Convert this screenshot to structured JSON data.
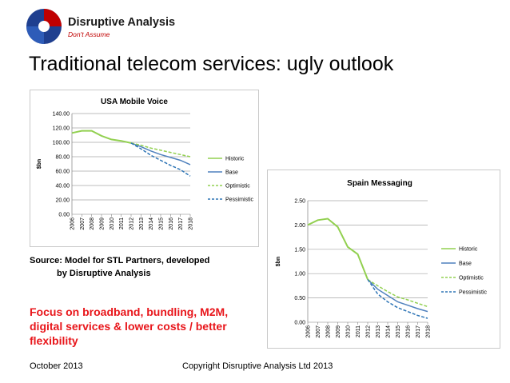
{
  "logo": {
    "brand": "Disruptive Analysis",
    "tagline": "Don't Assume"
  },
  "slide_title": "Traditional telecom services: ugly outlook",
  "source_line1": "Source: Model for STL Partners, developed",
  "source_line2": "by Disruptive Analysis",
  "focus_text": "Focus on broadband, bundling, M2M, digital services & lower costs / better flexibility",
  "footer": {
    "date": "October 2013",
    "copyright": "Copyright Disruptive Analysis Ltd 2013"
  },
  "colors": {
    "historic": "#92d050",
    "base": "#4f81bd",
    "optimistic": "#92d050",
    "pessimistic": "#2e75b6",
    "accent_red": "#e8151a"
  },
  "chart_data": [
    {
      "id": "usa",
      "type": "line",
      "title": "USA Mobile Voice",
      "ylabel": "$bn",
      "xlabel": "",
      "ylim": [
        0,
        140
      ],
      "yticks": [
        0,
        20,
        40,
        60,
        80,
        100,
        120,
        140
      ],
      "ytick_labels": [
        "0.00",
        "20.00",
        "40.00",
        "60.00",
        "80.00",
        "100.00",
        "120.00",
        "140.00"
      ],
      "categories": [
        "2006",
        "2007",
        "2008",
        "2009",
        "2010",
        "2011",
        "2012",
        "2013",
        "2014",
        "2015",
        "2016",
        "2017",
        "2018"
      ],
      "legend_position": "right",
      "series": [
        {
          "name": "Historic",
          "style": "solid",
          "values": [
            113,
            116,
            116,
            109,
            104,
            102,
            99,
            null,
            null,
            null,
            null,
            null,
            null
          ]
        },
        {
          "name": "Base",
          "style": "solid",
          "values": [
            null,
            null,
            null,
            null,
            null,
            null,
            99,
            94,
            88,
            83,
            79,
            75,
            69
          ]
        },
        {
          "name": "Optimistic",
          "style": "dashed",
          "values": [
            null,
            null,
            null,
            null,
            null,
            null,
            99,
            96,
            92,
            89,
            86,
            83,
            80
          ]
        },
        {
          "name": "Pessimistic",
          "style": "dashed",
          "values": [
            null,
            null,
            null,
            null,
            null,
            null,
            99,
            91,
            82,
            75,
            68,
            62,
            53
          ]
        }
      ]
    },
    {
      "id": "spain",
      "type": "line",
      "title": "Spain Messaging",
      "ylabel": "$bn",
      "xlabel": "",
      "ylim": [
        0,
        2.5
      ],
      "yticks": [
        0,
        0.5,
        1,
        1.5,
        2,
        2.5
      ],
      "ytick_labels": [
        "0.00",
        "0.50",
        "1.00",
        "1.50",
        "2.00",
        "2.50"
      ],
      "categories": [
        "2006",
        "2007",
        "2008",
        "2009",
        "2010",
        "2011",
        "2012",
        "2013",
        "2014",
        "2015",
        "2016",
        "2017",
        "2018"
      ],
      "legend_position": "right",
      "series": [
        {
          "name": "Historic",
          "style": "solid",
          "values": [
            2.0,
            2.1,
            2.13,
            1.96,
            1.55,
            1.4,
            0.88,
            null,
            null,
            null,
            null,
            null,
            null
          ]
        },
        {
          "name": "Base",
          "style": "solid",
          "values": [
            null,
            null,
            null,
            null,
            null,
            null,
            0.88,
            0.68,
            0.55,
            0.42,
            0.35,
            0.28,
            0.22
          ]
        },
        {
          "name": "Optimistic",
          "style": "dashed",
          "values": [
            null,
            null,
            null,
            null,
            null,
            null,
            0.88,
            0.75,
            0.63,
            0.52,
            0.46,
            0.39,
            0.32
          ]
        },
        {
          "name": "Pessimistic",
          "style": "dashed",
          "values": [
            null,
            null,
            null,
            null,
            null,
            null,
            0.88,
            0.58,
            0.42,
            0.3,
            0.22,
            0.14,
            0.08
          ]
        }
      ]
    }
  ]
}
